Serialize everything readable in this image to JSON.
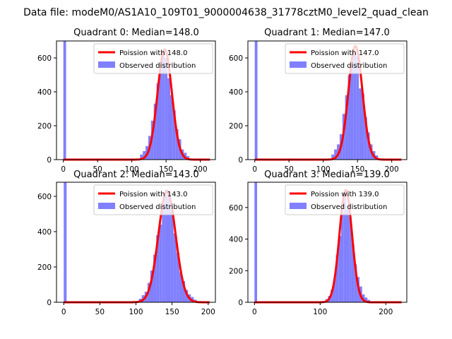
{
  "figure_title": "Data file: modeM0/AS1A10_109T01_9000004638_31778cztM0_level2_quad_clean",
  "colors": {
    "line": "#ff0000",
    "hist": "#8080ff",
    "axis": "#000000"
  },
  "chart_data": [
    {
      "type": "bar",
      "title": "Quadrant 0: Median=148.0",
      "mean": 148.0,
      "sigma": 10.5,
      "peak": 650,
      "xlim": [
        -10,
        222
      ],
      "ylim": [
        0,
        700
      ],
      "xticks": [
        0,
        50,
        100,
        150,
        200
      ],
      "yticks": [
        0,
        200,
        400,
        600
      ],
      "legend": {
        "line_label": "Poission with 148.0",
        "hist_label": "Observed distribution",
        "placement": "upper right"
      },
      "hist_bins": [
        {
          "x0": 0,
          "x1": 4,
          "count": 700
        },
        {
          "x0": 112,
          "x1": 116,
          "count": 30
        },
        {
          "x0": 116,
          "x1": 120,
          "count": 50
        },
        {
          "x0": 120,
          "x1": 124,
          "count": 80
        },
        {
          "x0": 124,
          "x1": 128,
          "count": 140
        },
        {
          "x0": 128,
          "x1": 132,
          "count": 230
        },
        {
          "x0": 132,
          "x1": 136,
          "count": 330
        },
        {
          "x0": 136,
          "x1": 140,
          "count": 450
        },
        {
          "x0": 140,
          "x1": 144,
          "count": 530
        },
        {
          "x0": 144,
          "x1": 148,
          "count": 640
        },
        {
          "x0": 148,
          "x1": 152,
          "count": 600
        },
        {
          "x0": 152,
          "x1": 156,
          "count": 480
        },
        {
          "x0": 156,
          "x1": 160,
          "count": 380
        },
        {
          "x0": 160,
          "x1": 164,
          "count": 290
        },
        {
          "x0": 164,
          "x1": 168,
          "count": 180
        },
        {
          "x0": 168,
          "x1": 172,
          "count": 120
        },
        {
          "x0": 172,
          "x1": 176,
          "count": 60
        },
        {
          "x0": 176,
          "x1": 180,
          "count": 40
        },
        {
          "x0": 180,
          "x1": 184,
          "count": 20
        }
      ]
    },
    {
      "type": "bar",
      "title": "Quadrant 1: Median=147.0",
      "mean": 147.0,
      "sigma": 10.2,
      "peak": 670,
      "xlim": [
        -10,
        222
      ],
      "ylim": [
        0,
        700
      ],
      "xticks": [
        0,
        50,
        100,
        150,
        200
      ],
      "yticks": [
        0,
        200,
        400,
        600
      ],
      "legend": {
        "line_label": "Poission with 147.0",
        "hist_label": "Observed distribution",
        "placement": "upper right"
      },
      "hist_bins": [
        {
          "x0": 0,
          "x1": 4,
          "count": 700
        },
        {
          "x0": 112,
          "x1": 116,
          "count": 30
        },
        {
          "x0": 116,
          "x1": 120,
          "count": 60
        },
        {
          "x0": 120,
          "x1": 124,
          "count": 90
        },
        {
          "x0": 124,
          "x1": 128,
          "count": 150
        },
        {
          "x0": 128,
          "x1": 132,
          "count": 270
        },
        {
          "x0": 132,
          "x1": 136,
          "count": 380
        },
        {
          "x0": 136,
          "x1": 140,
          "count": 500
        },
        {
          "x0": 140,
          "x1": 144,
          "count": 560
        },
        {
          "x0": 144,
          "x1": 148,
          "count": 630
        },
        {
          "x0": 148,
          "x1": 152,
          "count": 610
        },
        {
          "x0": 152,
          "x1": 156,
          "count": 420
        },
        {
          "x0": 156,
          "x1": 160,
          "count": 390
        },
        {
          "x0": 160,
          "x1": 164,
          "count": 250
        },
        {
          "x0": 164,
          "x1": 168,
          "count": 160
        },
        {
          "x0": 168,
          "x1": 172,
          "count": 90
        },
        {
          "x0": 172,
          "x1": 176,
          "count": 50
        },
        {
          "x0": 176,
          "x1": 180,
          "count": 25
        }
      ]
    },
    {
      "type": "bar",
      "title": "Quadrant 2: Median=143.0",
      "mean": 143.0,
      "sigma": 12.0,
      "peak": 630,
      "xlim": [
        -10,
        210
      ],
      "ylim": [
        0,
        680
      ],
      "xticks": [
        0,
        50,
        100,
        150,
        200
      ],
      "yticks": [
        0,
        200,
        400,
        600
      ],
      "legend": {
        "line_label": "Poission with 143.0",
        "hist_label": "Observed distribution",
        "placement": "upper right"
      },
      "hist_bins": [
        {
          "x0": 0,
          "x1": 4,
          "count": 680
        },
        {
          "x0": 104,
          "x1": 108,
          "count": 20
        },
        {
          "x0": 108,
          "x1": 112,
          "count": 40
        },
        {
          "x0": 112,
          "x1": 116,
          "count": 60
        },
        {
          "x0": 116,
          "x1": 120,
          "count": 110
        },
        {
          "x0": 120,
          "x1": 124,
          "count": 180
        },
        {
          "x0": 124,
          "x1": 128,
          "count": 270
        },
        {
          "x0": 128,
          "x1": 132,
          "count": 380
        },
        {
          "x0": 132,
          "x1": 136,
          "count": 440
        },
        {
          "x0": 136,
          "x1": 140,
          "count": 560
        },
        {
          "x0": 140,
          "x1": 144,
          "count": 640
        },
        {
          "x0": 144,
          "x1": 148,
          "count": 600
        },
        {
          "x0": 148,
          "x1": 152,
          "count": 520
        },
        {
          "x0": 152,
          "x1": 156,
          "count": 390
        },
        {
          "x0": 156,
          "x1": 160,
          "count": 280
        },
        {
          "x0": 160,
          "x1": 164,
          "count": 170
        },
        {
          "x0": 164,
          "x1": 168,
          "count": 120
        },
        {
          "x0": 168,
          "x1": 172,
          "count": 70
        },
        {
          "x0": 172,
          "x1": 176,
          "count": 45
        },
        {
          "x0": 176,
          "x1": 180,
          "count": 30
        },
        {
          "x0": 180,
          "x1": 184,
          "count": 15
        }
      ]
    },
    {
      "type": "bar",
      "title": "Quadrant 3: Median=139.0",
      "mean": 139.0,
      "sigma": 9.6,
      "peak": 710,
      "xlim": [
        -10,
        232
      ],
      "ylim": [
        0,
        760
      ],
      "xticks": [
        0,
        100,
        200
      ],
      "yticks": [
        0,
        200,
        400,
        600
      ],
      "legend": {
        "line_label": "Poission with 139.0",
        "hist_label": "Observed distribution",
        "placement": "upper right"
      },
      "hist_bins": [
        {
          "x0": 0,
          "x1": 4,
          "count": 760
        },
        {
          "x0": 108,
          "x1": 112,
          "count": 20
        },
        {
          "x0": 112,
          "x1": 116,
          "count": 40
        },
        {
          "x0": 116,
          "x1": 120,
          "count": 80
        },
        {
          "x0": 120,
          "x1": 124,
          "count": 150
        },
        {
          "x0": 124,
          "x1": 128,
          "count": 300
        },
        {
          "x0": 128,
          "x1": 132,
          "count": 420
        },
        {
          "x0": 132,
          "x1": 136,
          "count": 570
        },
        {
          "x0": 136,
          "x1": 140,
          "count": 690
        },
        {
          "x0": 140,
          "x1": 144,
          "count": 590
        },
        {
          "x0": 144,
          "x1": 148,
          "count": 540
        },
        {
          "x0": 148,
          "x1": 152,
          "count": 370
        },
        {
          "x0": 152,
          "x1": 156,
          "count": 240
        },
        {
          "x0": 156,
          "x1": 160,
          "count": 160
        },
        {
          "x0": 160,
          "x1": 164,
          "count": 100
        },
        {
          "x0": 164,
          "x1": 168,
          "count": 50
        },
        {
          "x0": 168,
          "x1": 172,
          "count": 30
        },
        {
          "x0": 172,
          "x1": 176,
          "count": 15
        }
      ]
    }
  ]
}
